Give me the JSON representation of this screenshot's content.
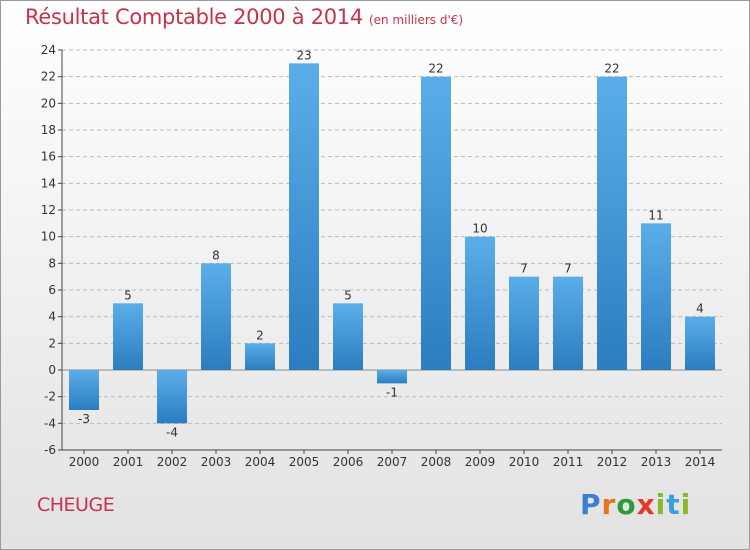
{
  "header": {
    "title": "Résultat Comptable 2000 à 2014",
    "subtitle": "(en milliers d'€)"
  },
  "footer": {
    "town": "CHEUGE",
    "logo": [
      "P",
      "r",
      "o",
      "x",
      "i",
      "t",
      "i"
    ]
  },
  "colors": {
    "bar_light": "#5aaee8",
    "bar_dark": "#2a7ec0",
    "title": "#c8324a",
    "axis": "#444444",
    "grid": "#bbbbbb"
  },
  "chart_data": {
    "type": "bar",
    "title": "Résultat Comptable 2000 à 2014",
    "xlabel": "",
    "ylabel": "",
    "ylim": [
      -6,
      24
    ],
    "yticks": [
      -6,
      -4,
      -2,
      0,
      2,
      4,
      6,
      8,
      10,
      12,
      14,
      16,
      18,
      20,
      22,
      24
    ],
    "grid": true,
    "categories": [
      "2000",
      "2001",
      "2002",
      "2003",
      "2004",
      "2005",
      "2006",
      "2007",
      "2008",
      "2009",
      "2010",
      "2011",
      "2012",
      "2013",
      "2014"
    ],
    "values": [
      -3,
      5,
      -4,
      8,
      2,
      23,
      5,
      -1,
      22,
      10,
      7,
      7,
      22,
      11,
      4
    ],
    "labels": [
      "-3",
      "5",
      "-4",
      "8",
      "2",
      "23",
      "5",
      "-1",
      "22",
      "10",
      "7",
      "7",
      "22",
      "11",
      "4"
    ]
  }
}
